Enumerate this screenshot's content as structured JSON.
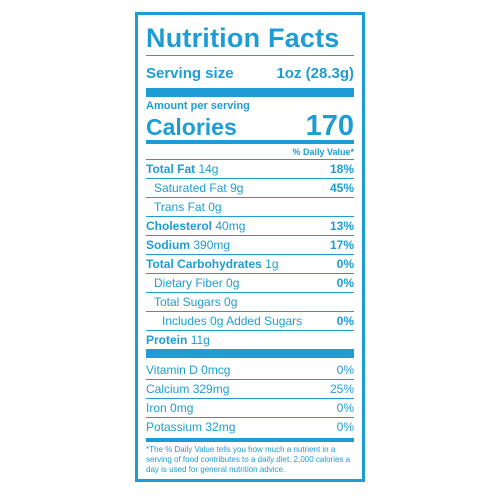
{
  "label": {
    "title": "Nutrition Facts",
    "serving": {
      "label": "Serving size",
      "value": "1oz (28.3g)"
    },
    "amount_per_serving": "Amount per serving",
    "calories": {
      "label": "Calories",
      "value": "170"
    },
    "dv_header": "% Daily Value*",
    "nutrients": [
      {
        "name": "Total Fat",
        "amount": "14g",
        "dv": "18%"
      },
      {
        "name": "Saturated Fat",
        "amount": "9g",
        "dv": "45%"
      },
      {
        "name": "Trans Fat",
        "amount": "0g",
        "dv": ""
      },
      {
        "name": "Cholesterol",
        "amount": "40mg",
        "dv": "13%"
      },
      {
        "name": "Sodium",
        "amount": "390mg",
        "dv": "17%"
      },
      {
        "name": "Total Carbohydrates",
        "amount": "1g",
        "dv": "0%"
      },
      {
        "name": "Dietary Fiber",
        "amount": "0g",
        "dv": "0%"
      },
      {
        "name": "Total Sugars",
        "amount": "0g",
        "dv": ""
      },
      {
        "name": "Includes",
        "amount": "0g Added Sugars",
        "dv": "0%"
      },
      {
        "name": "Protein",
        "amount": "11g",
        "dv": ""
      }
    ],
    "vitamins": [
      {
        "name": "Vitamin D",
        "amount": "0mcg",
        "dv": "0%"
      },
      {
        "name": "Calcium",
        "amount": "329mg",
        "dv": "25%"
      },
      {
        "name": "Iron",
        "amount": "0mg",
        "dv": "0%"
      },
      {
        "name": "Potassium",
        "amount": "32mg",
        "dv": "0%"
      }
    ],
    "footnote": "*The % Daily Value tells you how much a nutrient in a serving of food contributes to a daily diet. 2,000 calories a day is used for general nutrition advice.",
    "color": "#1e9dd4"
  }
}
